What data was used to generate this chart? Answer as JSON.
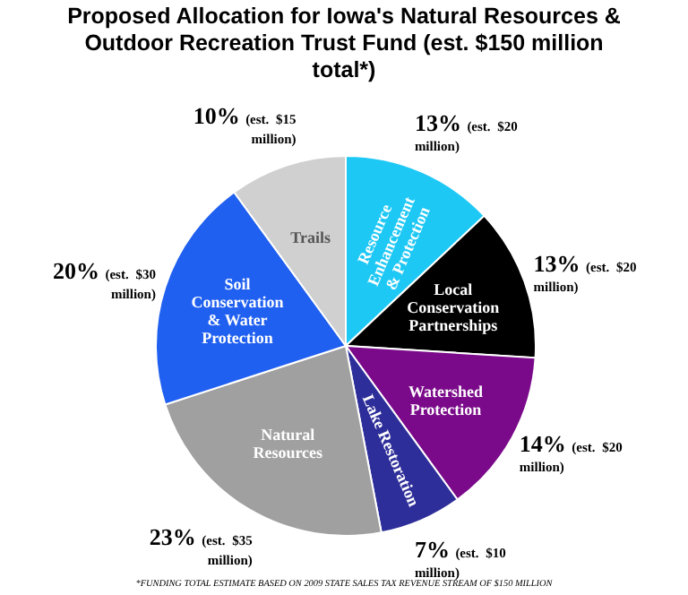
{
  "chart_data": {
    "type": "pie",
    "title": "Proposed Allocation for Iowa's Natural Resources & Outdoor Recreation Trust Fund (est. $150 million total*)",
    "categories": [
      "Resource Enhancement & Protection",
      "Local Conservation Partnerships",
      "Watershed Protection",
      "Lake Restoration",
      "Natural Resources",
      "Soil Conservation & Water Protection",
      "Trails"
    ],
    "values": [
      13,
      13,
      14,
      7,
      23,
      20,
      10
    ],
    "colors": [
      "#1ec8f5",
      "#000000",
      "#7a0a8a",
      "#2e2e9a",
      "#a0a0a0",
      "#2060f0",
      "#d0d0d0"
    ],
    "value_labels": [
      "13% (est. $20 million)",
      "13% (est. $20 million)",
      "14% (est. $20 million)",
      "7% (est. $10 million)",
      "23% (est. $35 million)",
      "20% (est. $30 million)",
      "10% (est. $15 million)"
    ],
    "annotations": [
      "*FUNDING TOTAL ESTIMATE BASED ON 2009 STATE SALES TAX REVENUE STREAM OF $150 MILLION"
    ]
  }
}
